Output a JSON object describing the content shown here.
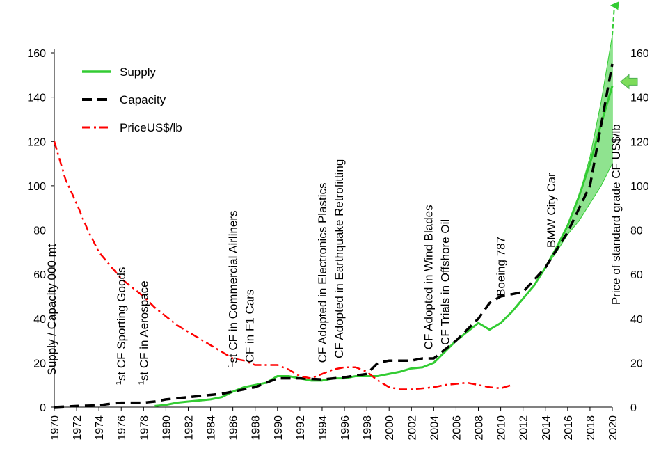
{
  "chart_data": {
    "type": "line",
    "y_left_ticks": [
      "0",
      "20",
      "40",
      "60",
      "80",
      "100",
      "120",
      "140",
      "160"
    ],
    "y_right_ticks": [
      "0",
      "20",
      "40",
      "60",
      "80",
      "100",
      "120",
      "140",
      "160"
    ],
    "x_ticks": [
      "1970",
      "1972",
      "1974",
      "1976",
      "1978",
      "1980",
      "1982",
      "1984",
      "1986",
      "1988",
      "1990",
      "1992",
      "1994",
      "1996",
      "1998",
      "2000",
      "2002",
      "2004",
      "2006",
      "2008",
      "2010",
      "2012",
      "2014",
      "2016",
      "2018",
      "2020"
    ],
    "ylim": [
      0,
      160
    ],
    "xlim": [
      1970,
      2020
    ],
    "ylabel_left": "Supply / Capacity 000 mt",
    "ylabel_right": "Price of standard grade CF US$/lb",
    "grid": false,
    "legend_position": "top-left",
    "series": [
      {
        "name": "Supply",
        "style": "solid",
        "color": "#33cc33",
        "x": [
          1979,
          1980,
          1981,
          1982,
          1983,
          1984,
          1985,
          1986,
          1987,
          1988,
          1989,
          1990,
          1991,
          1992,
          1993,
          1994,
          1995,
          1996,
          1997,
          1998,
          1999,
          2000,
          2001,
          2002,
          2003,
          2004,
          2005,
          2006,
          2007,
          2008,
          2009,
          2010,
          2011,
          2012,
          2013,
          2014,
          2015,
          2016,
          2017,
          2018,
          2019,
          2020
        ],
        "y": [
          0.5,
          1,
          2,
          2.5,
          3,
          3.5,
          4.5,
          7,
          9,
          10,
          11,
          14,
          14,
          13,
          12,
          12,
          13,
          13,
          14,
          14,
          14,
          15,
          16,
          17.5,
          18,
          20,
          25,
          30,
          34,
          38,
          35,
          38,
          43,
          49,
          55,
          63,
          72,
          82,
          95,
          110,
          128,
          145
        ]
      },
      {
        "name": "Capacity",
        "style": "dashed",
        "color": "#000000",
        "x": [
          1970,
          1972,
          1974,
          1975,
          1976,
          1978,
          1979,
          1980,
          1982,
          1984,
          1985,
          1986,
          1988,
          1990,
          1992,
          1994,
          1996,
          1998,
          1999,
          2000,
          2002,
          2003,
          2004,
          2006,
          2008,
          2009,
          2010,
          2012,
          2014,
          2016,
          2018,
          2020
        ],
        "y": [
          0,
          0.5,
          0.8,
          1.5,
          2,
          2,
          2.5,
          3.5,
          4.5,
          5.5,
          6,
          7,
          9,
          13,
          13,
          12.5,
          13.5,
          15,
          20,
          21,
          21,
          22,
          22,
          30,
          40,
          47,
          50,
          52,
          63,
          79,
          100,
          155
        ]
      },
      {
        "name": "PriceUS$/lb",
        "style": "dash-dot",
        "color": "#ff0000",
        "x": [
          1970,
          1971,
          1972,
          1973,
          1974,
          1975,
          1976,
          1977,
          1978,
          1979,
          1980,
          1981,
          1982,
          1983,
          1984,
          1985,
          1986,
          1987,
          1988,
          1989,
          1990,
          1991,
          1992,
          1993,
          1994,
          1995,
          1996,
          1997,
          1998,
          1999,
          2000,
          2001,
          2002,
          2003,
          2004,
          2005,
          2006,
          2007,
          2008,
          2009,
          2010,
          2011
        ],
        "y": [
          120,
          103,
          92,
          80,
          70,
          64,
          58,
          54,
          50,
          45,
          41,
          37,
          34,
          31,
          28,
          25,
          22,
          21,
          19,
          19,
          19,
          17,
          14,
          13,
          15,
          17,
          18,
          18,
          16,
          12,
          9,
          8,
          8,
          8.5,
          9,
          10,
          10.5,
          11,
          10,
          9,
          8.5,
          10
        ]
      }
    ],
    "projection_band": {
      "color": "#33cc33",
      "x": [
        2013,
        2014,
        2015,
        2016,
        2017,
        2018,
        2019,
        2020
      ],
      "upper": [
        55,
        63,
        72,
        82,
        95,
        113,
        138,
        168
      ],
      "lower": [
        55,
        63,
        70,
        78,
        84,
        92,
        100,
        110
      ]
    },
    "annotations": [
      {
        "sup": "1",
        "text": "st CF Sporting Goods",
        "year": 1976,
        "value": 10
      },
      {
        "sup": "1",
        "text": "st CF in Aerospace",
        "year": 1978,
        "value": 10
      },
      {
        "sup": "1",
        "text": "st CF in Commercial Airliners",
        "year": 1986,
        "value": 18
      },
      {
        "sup": "",
        "text": "CF in F1 Cars",
        "year": 1987.5,
        "value": 20
      },
      {
        "sup": "",
        "text": "CF Adopted in Electronics Plastics",
        "year": 1994,
        "value": 20
      },
      {
        "sup": "",
        "text": "CF Adopted in Earthquake Retrofitting",
        "year": 1995.5,
        "value": 22
      },
      {
        "sup": "",
        "text": "CF Adopted in Wind Blades",
        "year": 2003.5,
        "value": 26
      },
      {
        "sup": "",
        "text": "CF Trials in Offshore Oil",
        "year": 2005,
        "value": 28
      },
      {
        "sup": "",
        "text": "Boeing 787",
        "year": 2010,
        "value": 50
      },
      {
        "sup": "",
        "text": "BMW City Car",
        "year": 2014.5,
        "value": 72
      }
    ],
    "marker_arrow": {
      "value": 147,
      "color": "#7ddc5a"
    }
  }
}
